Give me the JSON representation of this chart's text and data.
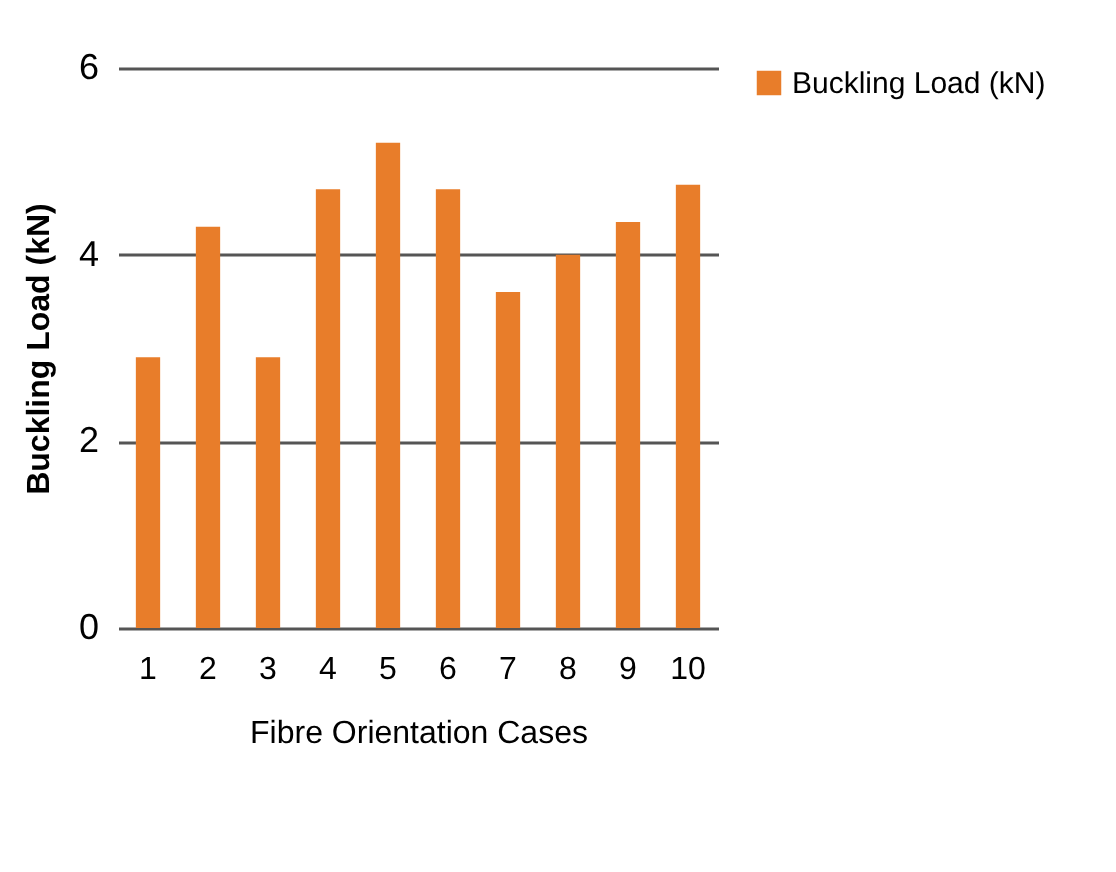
{
  "chart_data": {
    "type": "bar",
    "xlabel": "Fibre Orientation Cases",
    "ylabel": "Buckling Load (kN)",
    "categories": [
      "1",
      "2",
      "3",
      "4",
      "5",
      "6",
      "7",
      "8",
      "9",
      "10"
    ],
    "series": [
      {
        "name": "Buckling Load (kN)",
        "color": "#e87d2a",
        "values": [
          2.9,
          4.3,
          2.9,
          4.7,
          5.2,
          4.7,
          3.6,
          4.0,
          4.35,
          4.75
        ]
      }
    ],
    "ylim": [
      0,
      6
    ],
    "yticks": [
      0,
      2,
      4,
      6
    ],
    "grid": "y",
    "legend": "right"
  }
}
